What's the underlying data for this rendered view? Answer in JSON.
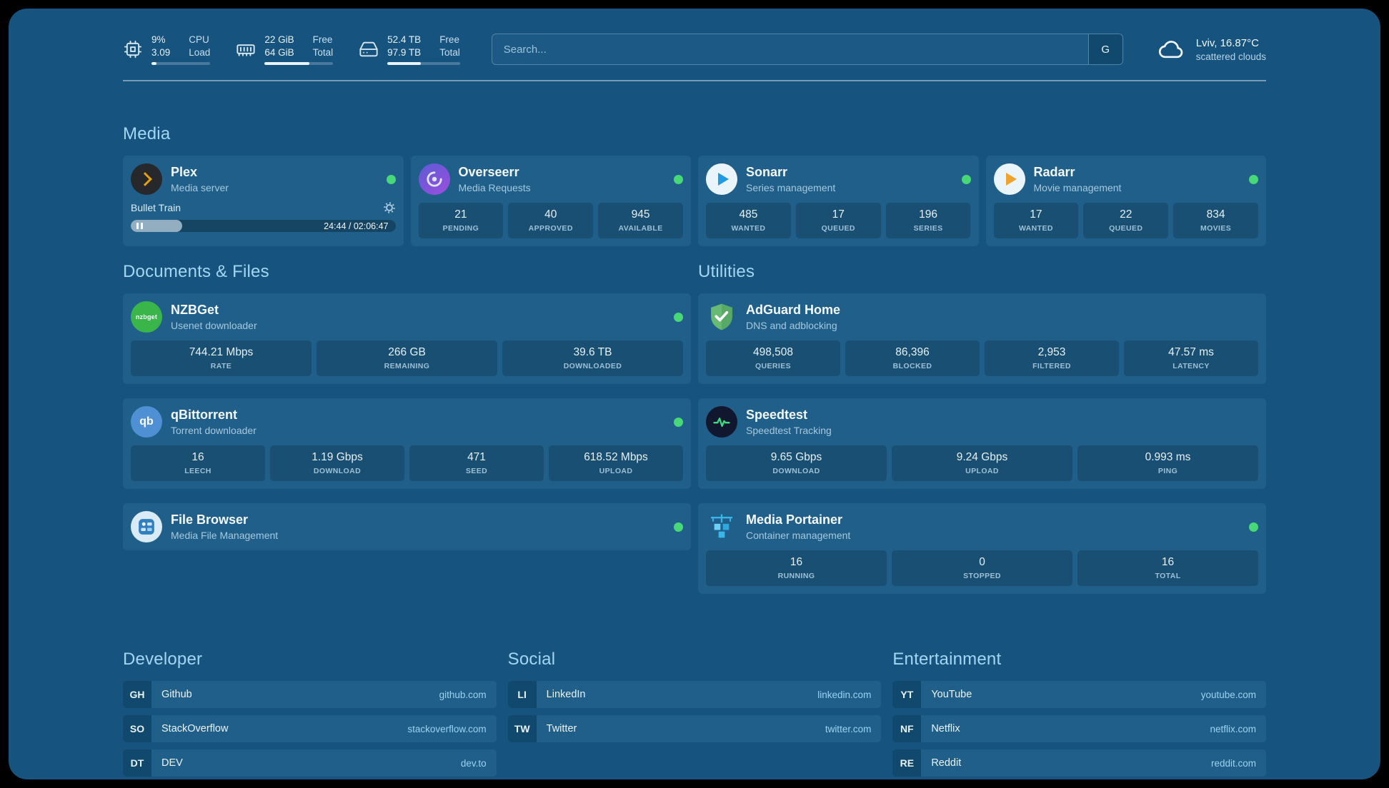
{
  "theme": {
    "background": "#16537e",
    "card": "#1f5f8a",
    "status_online_green": "#47d878",
    "heading_blue": "#a3d6f3",
    "link_blue": "#9cd2f2",
    "plex_amber": "#e5a00d"
  },
  "header": {
    "cpu": {
      "icon": "cpu-icon",
      "value_top": "9%",
      "value_bottom": "3.09",
      "label_top": "CPU",
      "label_bottom": "Load",
      "bar_pct": 9
    },
    "ram": {
      "icon": "ram-icon",
      "value_top": "22 GiB",
      "value_bottom": "64 GiB",
      "label_top": "Free",
      "label_bottom": "Total",
      "bar_pct": 65
    },
    "disk": {
      "icon": "disk-icon",
      "value_top": "52.4 TB",
      "value_bottom": "97.9 TB",
      "label_top": "Free",
      "label_bottom": "Total",
      "bar_pct": 46
    },
    "search": {
      "placeholder": "Search...",
      "provider_button": "G"
    },
    "weather": {
      "icon": "cloud-icon",
      "location_temp": "Lviv, 16.87°C",
      "condition": "scattered clouds"
    }
  },
  "media": {
    "title": "Media",
    "plex": {
      "icon": "plex-icon",
      "name": "Plex",
      "subtitle": "Media server",
      "status": "online",
      "now_playing": "Bullet Train",
      "time": "24:44 / 02:06:47",
      "progress_pct": 19.5
    },
    "cards": [
      {
        "icon": "overseerr-icon",
        "name": "Overseerr",
        "subtitle": "Media Requests",
        "status": "online",
        "stats": [
          {
            "value": "21",
            "label": "PENDING"
          },
          {
            "value": "40",
            "label": "APPROVED"
          },
          {
            "value": "945",
            "label": "AVAILABLE"
          }
        ]
      },
      {
        "icon": "sonarr-icon",
        "name": "Sonarr",
        "subtitle": "Series management",
        "status": "online",
        "stats": [
          {
            "value": "485",
            "label": "WANTED"
          },
          {
            "value": "17",
            "label": "QUEUED"
          },
          {
            "value": "196",
            "label": "SERIES"
          }
        ]
      },
      {
        "icon": "radarr-icon",
        "name": "Radarr",
        "subtitle": "Movie management",
        "status": "online",
        "stats": [
          {
            "value": "17",
            "label": "WANTED"
          },
          {
            "value": "22",
            "label": "QUEUED"
          },
          {
            "value": "834",
            "label": "MOVIES"
          }
        ]
      }
    ]
  },
  "documents": {
    "title": "Documents & Files",
    "cards": [
      {
        "icon": "nzbget-icon",
        "name": "NZBGet",
        "subtitle": "Usenet downloader",
        "status": "online",
        "stats": [
          {
            "value": "744.21 Mbps",
            "label": "RATE"
          },
          {
            "value": "266 GB",
            "label": "REMAINING"
          },
          {
            "value": "39.6 TB",
            "label": "DOWNLOADED"
          }
        ]
      },
      {
        "icon": "qbittorrent-icon",
        "name": "qBittorrent",
        "subtitle": "Torrent downloader",
        "status": "online",
        "stats": [
          {
            "value": "16",
            "label": "LEECH"
          },
          {
            "value": "1.19 Gbps",
            "label": "DOWNLOAD"
          },
          {
            "value": "471",
            "label": "SEED"
          },
          {
            "value": "618.52 Mbps",
            "label": "UPLOAD"
          }
        ]
      },
      {
        "icon": "filebrowser-icon",
        "name": "File Browser",
        "subtitle": "Media File Management",
        "status": "online",
        "stats": []
      }
    ]
  },
  "utilities": {
    "title": "Utilities",
    "cards": [
      {
        "icon": "adguard-icon",
        "name": "AdGuard Home",
        "subtitle": "DNS and adblocking",
        "stats": [
          {
            "value": "498,508",
            "label": "QUERIES"
          },
          {
            "value": "86,396",
            "label": "BLOCKED"
          },
          {
            "value": "2,953",
            "label": "FILTERED"
          },
          {
            "value": "47.57 ms",
            "label": "LATENCY"
          }
        ]
      },
      {
        "icon": "speedtest-icon",
        "name": "Speedtest",
        "subtitle": "Speedtest Tracking",
        "stats": [
          {
            "value": "9.65 Gbps",
            "label": "DOWNLOAD"
          },
          {
            "value": "9.24 Gbps",
            "label": "UPLOAD"
          },
          {
            "value": "0.993 ms",
            "label": "PING"
          }
        ]
      },
      {
        "icon": "portainer-icon",
        "name": "Media Portainer",
        "subtitle": "Container management",
        "status": "online",
        "stats": [
          {
            "value": "16",
            "label": "RUNNING"
          },
          {
            "value": "0",
            "label": "STOPPED"
          },
          {
            "value": "16",
            "label": "TOTAL"
          }
        ]
      }
    ]
  },
  "bookmarks": {
    "groups": [
      {
        "title": "Developer",
        "links": [
          {
            "abbr": "GH",
            "name": "Github",
            "domain": "github.com"
          },
          {
            "abbr": "SO",
            "name": "StackOverflow",
            "domain": "stackoverflow.com"
          },
          {
            "abbr": "DT",
            "name": "DEV",
            "domain": "dev.to"
          }
        ]
      },
      {
        "title": "Social",
        "links": [
          {
            "abbr": "LI",
            "name": "LinkedIn",
            "domain": "linkedin.com"
          },
          {
            "abbr": "TW",
            "name": "Twitter",
            "domain": "twitter.com"
          }
        ]
      },
      {
        "title": "Entertainment",
        "links": [
          {
            "abbr": "YT",
            "name": "YouTube",
            "domain": "youtube.com"
          },
          {
            "abbr": "NF",
            "name": "Netflix",
            "domain": "netflix.com"
          },
          {
            "abbr": "RE",
            "name": "Reddit",
            "domain": "reddit.com"
          }
        ]
      }
    ]
  }
}
